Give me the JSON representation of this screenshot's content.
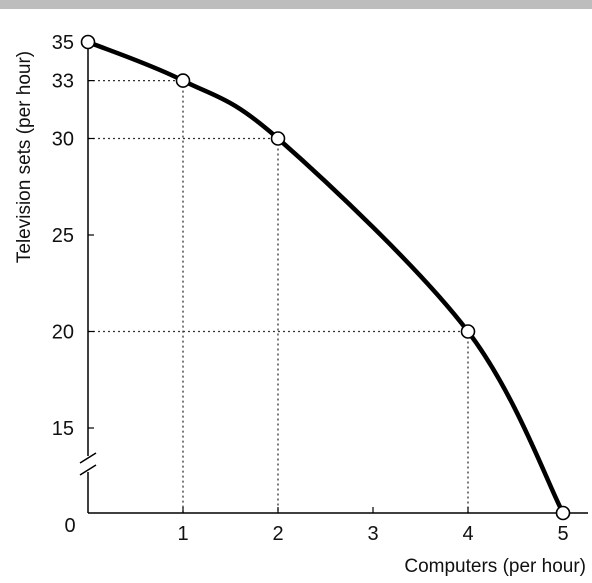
{
  "chart_data": {
    "type": "line",
    "title": "",
    "xlabel": "Computers (per hour)",
    "ylabel": "Television sets (per hour)",
    "xlim": [
      0,
      5
    ],
    "ylim": [
      15,
      35
    ],
    "axis_break": "y",
    "origin_label": "0",
    "x_ticks": [
      1,
      2,
      3,
      4,
      5
    ],
    "x_tick_labels": [
      "1",
      "2",
      "3",
      "4",
      "5"
    ],
    "y_ticks": [
      15,
      20,
      25,
      30,
      33,
      35
    ],
    "y_tick_labels": [
      "15",
      "20",
      "25",
      "30",
      "33",
      "35"
    ],
    "points": [
      {
        "x": 0,
        "y": 35
      },
      {
        "x": 1,
        "y": 33
      },
      {
        "x": 2,
        "y": 30
      },
      {
        "x": 4,
        "y": 20
      },
      {
        "x": 5,
        "y": 0
      }
    ],
    "guide_lines": "dotted",
    "colors": {
      "curve": "#000000",
      "marker_fill": "#ffffff",
      "guide": "#333333",
      "header_bar": "#bdbdbd"
    }
  }
}
